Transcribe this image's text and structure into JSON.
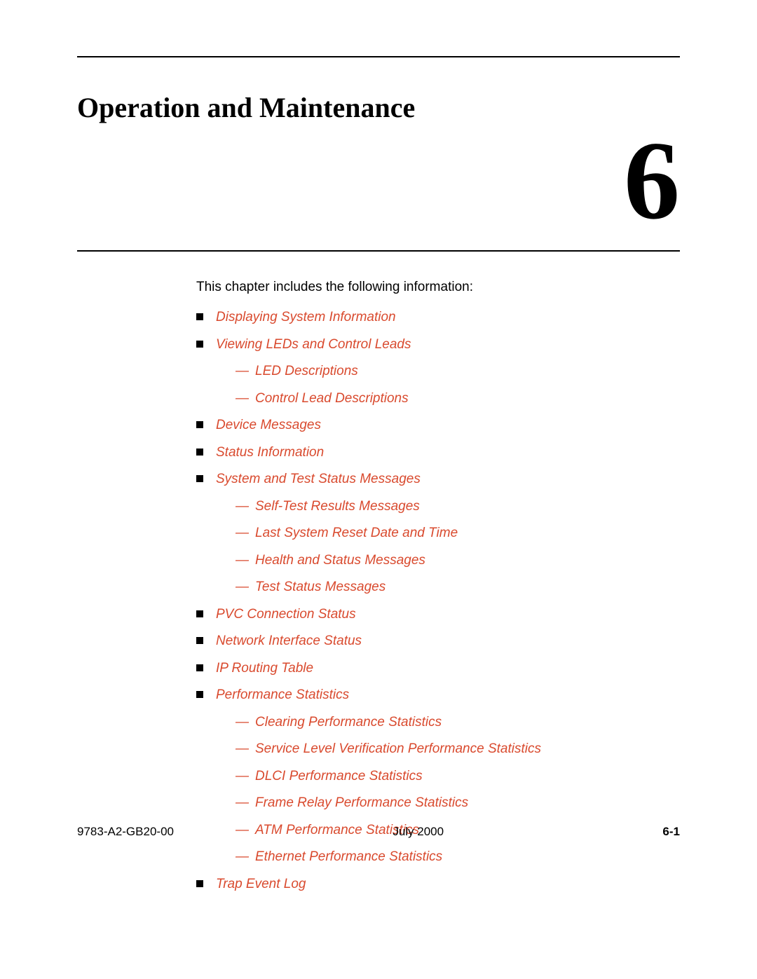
{
  "chapter": {
    "title": "Operation and Maintenance",
    "number": "6",
    "intro": "This chapter includes the following information:"
  },
  "toc": [
    {
      "label": "Displaying System Information"
    },
    {
      "label": "Viewing LEDs and Control Leads",
      "children": [
        {
          "label": "LED Descriptions"
        },
        {
          "label": "Control Lead Descriptions"
        }
      ]
    },
    {
      "label": "Device Messages"
    },
    {
      "label": "Status Information"
    },
    {
      "label": "System and Test Status Messages",
      "children": [
        {
          "label": "Self-Test Results Messages"
        },
        {
          "label": "Last System Reset Date and Time"
        },
        {
          "label": "Health and Status Messages"
        },
        {
          "label": "Test Status Messages"
        }
      ]
    },
    {
      "label": "PVC Connection Status"
    },
    {
      "label": "Network Interface Status"
    },
    {
      "label": "IP Routing Table"
    },
    {
      "label": "Performance Statistics",
      "children": [
        {
          "label": "Clearing Performance Statistics"
        },
        {
          "label": "Service Level Verification Performance Statistics"
        },
        {
          "label": "DLCI Performance Statistics"
        },
        {
          "label": "Frame Relay Performance Statistics"
        },
        {
          "label": "ATM Performance Statistics"
        },
        {
          "label": "Ethernet Performance Statistics"
        }
      ]
    },
    {
      "label": "Trap Event Log"
    }
  ],
  "footer": {
    "doc_id": "9783-A2-GB20-00",
    "date": "July 2000",
    "page": "6-1"
  },
  "colors": {
    "link": "#d94a2e",
    "text": "#000000",
    "background": "#ffffff"
  }
}
